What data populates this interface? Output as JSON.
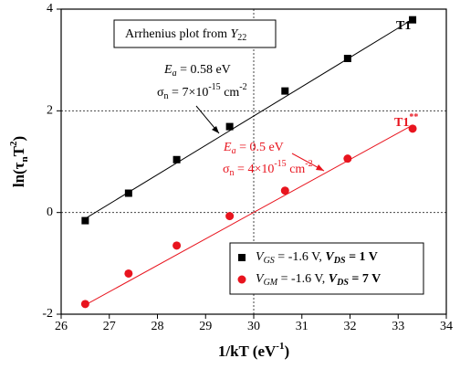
{
  "chart_data": {
    "type": "scatter",
    "x_label": [
      "1/kT (eV",
      "-1",
      ")"
    ],
    "y_label": [
      "ln(τ",
      "n",
      "T",
      "2",
      ")"
    ],
    "title_box": [
      "Arrhenius plot from ",
      "Y",
      "22"
    ],
    "xlim": [
      26,
      34
    ],
    "xticks": [
      26,
      27,
      28,
      29,
      30,
      31,
      32,
      33,
      34
    ],
    "ylim": [
      -2,
      4
    ],
    "yticks": [
      -2,
      0,
      2,
      4
    ],
    "grid_x": [
      30
    ],
    "grid_y": [
      0,
      2
    ],
    "x": [
      26.5,
      27.4,
      28.4,
      29.5,
      30.65,
      31.95,
      33.3
    ],
    "series": [
      {
        "name": [
          "V",
          "GS",
          " = -1.6 V, ",
          "V",
          "DS",
          " = 1 V"
        ],
        "color": "#000000",
        "marker": "square",
        "values": [
          -0.16,
          0.38,
          1.04,
          1.69,
          2.39,
          3.03,
          3.79
        ]
      },
      {
        "name": [
          "V",
          "GM",
          " = -1.6 V, ",
          "V",
          "DS",
          " = 7 V"
        ],
        "color": "#e8141e",
        "marker": "circle",
        "values": [
          -1.8,
          -1.2,
          -0.65,
          -0.07,
          0.43,
          1.06,
          1.65
        ]
      }
    ],
    "fit_lines": [
      {
        "color": "#000000",
        "x": [
          26.5,
          33.3
        ],
        "y": [
          -0.12,
          3.8
        ]
      },
      {
        "color": "#e8141e",
        "x": [
          26.5,
          33.3
        ],
        "y": [
          -1.82,
          1.72
        ]
      }
    ],
    "annotations": {
      "ea_black": [
        "E",
        "a",
        " = 0.58 eV"
      ],
      "sigma_black": [
        "σ",
        "n",
        " = 7×10",
        "-15",
        " cm",
        "-2"
      ],
      "ea_red": [
        "E",
        "a",
        " = 0.5 eV"
      ],
      "sigma_red": [
        "σ",
        "n",
        " = 4×10",
        "-15",
        " cm",
        "-2"
      ],
      "t1_black": [
        "T1",
        "*"
      ],
      "t1_red": [
        "T1",
        "**"
      ]
    }
  }
}
